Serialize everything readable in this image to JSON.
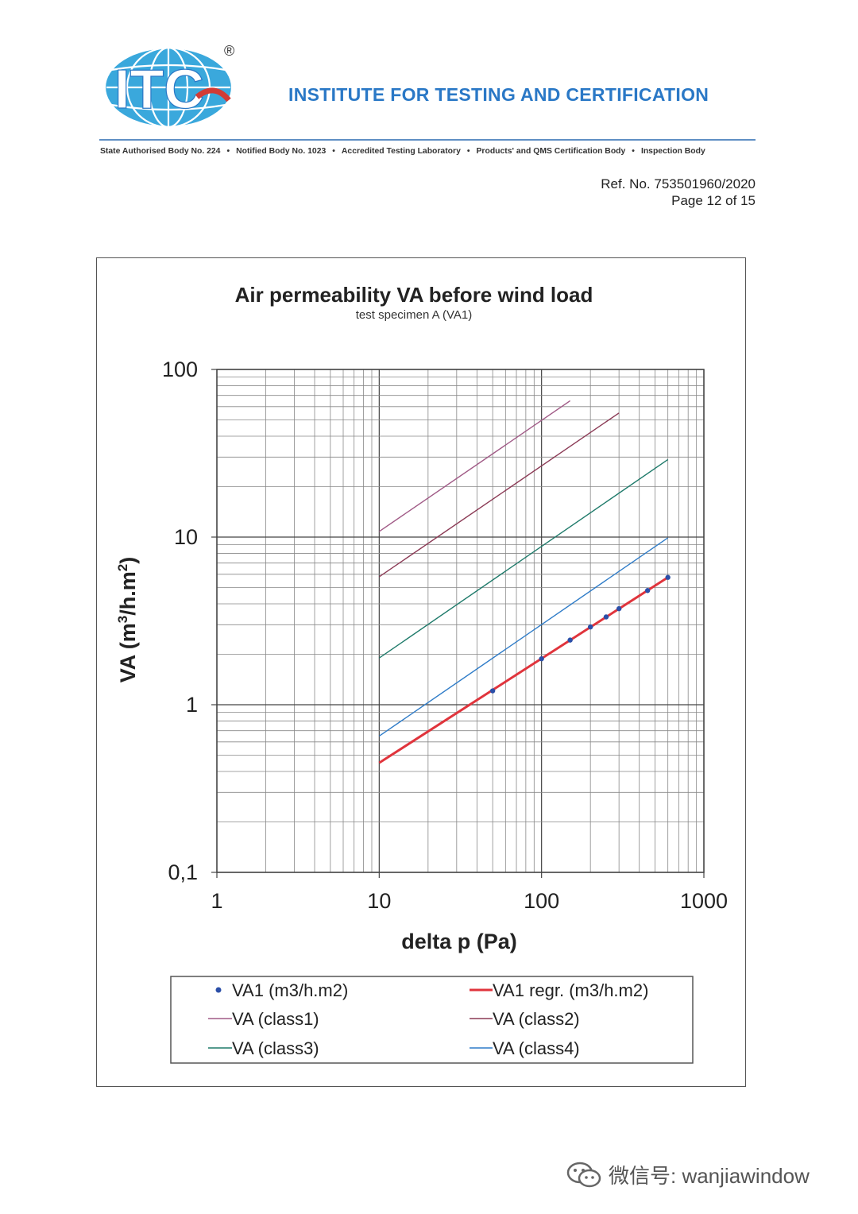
{
  "header": {
    "logo_text": "ITC",
    "registered_mark": "®",
    "institute_name": "INSTITUTE FOR TESTING AND CERTIFICATION",
    "accreditations": [
      "State Authorised Body  No. 224",
      "Notified Body  No. 1023",
      "Accredited Testing Laboratory",
      "Products'  and  QMS Certification Body",
      "Inspection Body"
    ],
    "bullet": "•",
    "colors": {
      "brand_blue": "#2a78c6",
      "logo_light_blue": "#3aa8dc",
      "logo_red": "#d23b36"
    }
  },
  "document": {
    "ref_no": "Ref. No. 753501960/2020",
    "page": "Page 12 of 15"
  },
  "chart_data": {
    "type": "line",
    "title": "Air permeability  VA before wind load",
    "subtitle": "test specimen A (VA1)",
    "xlabel": "delta p (Pa)",
    "ylabel_parts": [
      "VA (m",
      "3",
      "/h.m",
      "2",
      ")"
    ],
    "x_scale": "log",
    "y_scale": "log",
    "xlim": [
      1,
      1000
    ],
    "ylim": [
      0.1,
      100
    ],
    "x_ticks": [
      "1",
      "10",
      "100",
      "1000"
    ],
    "y_ticks": [
      "0,1",
      "1",
      "10",
      "100"
    ],
    "x_tick_values": [
      1,
      10,
      100,
      1000
    ],
    "y_tick_values": [
      0.1,
      1,
      10,
      100
    ],
    "grid": true,
    "legend_position": "bottom",
    "series": [
      {
        "name": "VA1 (m3/h.m2)",
        "kind": "points",
        "color": "#2b4fa8",
        "x": [
          50,
          100,
          150,
          200,
          250,
          300,
          450,
          600
        ],
        "y": [
          1.21,
          1.88,
          2.43,
          2.91,
          3.34,
          3.74,
          4.8,
          5.75
        ]
      },
      {
        "name": "VA1 regr. (m3/h.m2)",
        "kind": "line",
        "color": "#e0343c",
        "x": [
          10,
          600
        ],
        "y": [
          0.45,
          5.75
        ]
      },
      {
        "name": "VA (class1)",
        "kind": "line",
        "color": "#a05a86",
        "x": [
          10,
          150
        ],
        "y": [
          10.8,
          65.0
        ]
      },
      {
        "name": "VA (class2)",
        "kind": "line",
        "color": "#8b3a55",
        "x": [
          10,
          300
        ],
        "y": [
          5.8,
          55.0
        ]
      },
      {
        "name": "VA (class3)",
        "kind": "line",
        "color": "#1e7a6a",
        "x": [
          10,
          600
        ],
        "y": [
          1.9,
          29.0
        ]
      },
      {
        "name": "VA (class4)",
        "kind": "line",
        "color": "#2f7cc8",
        "x": [
          10,
          600
        ],
        "y": [
          0.65,
          9.9
        ]
      }
    ]
  },
  "watermark": {
    "text": "微信号: wanjiawindow",
    "icon": "wechat-icon"
  }
}
